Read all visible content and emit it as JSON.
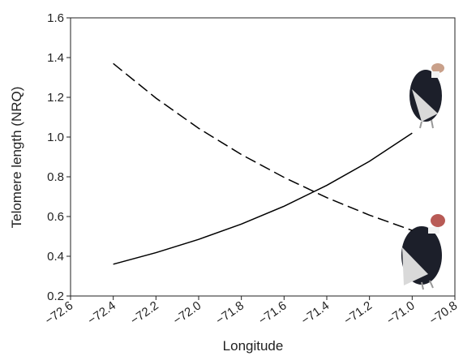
{
  "chart_data": {
    "type": "line",
    "x_label": "Longitude",
    "y_label": "Telomere length (NRQ)",
    "x": [
      -72.4,
      -72.2,
      -72.0,
      -71.8,
      -71.6,
      -71.4,
      -71.2,
      -71.0
    ],
    "series": [
      {
        "color": "#000000",
        "line_style": "solid",
        "values": [
          0.36,
          0.418,
          0.485,
          0.562,
          0.652,
          0.757,
          0.878,
          1.02
        ]
      },
      {
        "color": "#000000",
        "line_style": "dashed",
        "values": [
          1.37,
          1.196,
          1.044,
          0.912,
          0.797,
          0.695,
          0.607,
          0.53
        ]
      }
    ],
    "xlim": [
      -72.6,
      -70.8
    ],
    "ylim": [
      0.2,
      1.6
    ],
    "xticks": [
      {
        "value": -72.6,
        "label": "−72.6"
      },
      {
        "value": -72.4,
        "label": "−72.4"
      },
      {
        "value": -72.2,
        "label": "−72.2"
      },
      {
        "value": -72.0,
        "label": "−72.0"
      },
      {
        "value": -71.8,
        "label": "−71.8"
      },
      {
        "value": -71.6,
        "label": "−71.6"
      },
      {
        "value": -71.4,
        "label": "−71.4"
      },
      {
        "value": -71.2,
        "label": "−71.2"
      },
      {
        "value": -71.0,
        "label": "−71.0"
      },
      {
        "value": -70.8,
        "label": "−70.8"
      }
    ],
    "yticks": [
      0.2,
      0.4,
      0.6,
      0.8,
      {
        "value": 1.0,
        "label": "1.0"
      },
      1.2,
      1.4,
      1.6
    ]
  }
}
